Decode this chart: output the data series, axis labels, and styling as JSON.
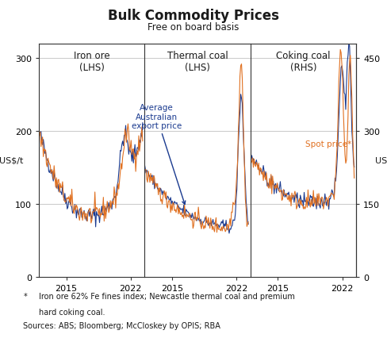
{
  "title": "Bulk Commodity Prices",
  "subtitle": "Free on board basis",
  "ylabel_left": "US$/t",
  "ylabel_right": "US$/t",
  "ylim_left": [
    0,
    320
  ],
  "ylim_right": [
    0,
    480
  ],
  "yticks_left": [
    0,
    100,
    200,
    300
  ],
  "yticks_right": [
    0,
    150,
    300,
    450
  ],
  "yticklabels_left": [
    "0",
    "100",
    "200",
    "300"
  ],
  "yticklabels_right": [
    "0",
    "150",
    "300",
    "450"
  ],
  "panel_labels": [
    "Iron ore\n(LHS)",
    "Thermal coal\n(LHS)",
    "Coking coal\n(RHS)"
  ],
  "xtick_values": [
    2015.0,
    2022.0
  ],
  "xtick_labels": [
    "2015",
    "2022"
  ],
  "xlim": [
    2012.0,
    2023.5
  ],
  "color_avg": "#1a3a8f",
  "color_spot": "#e07020",
  "annotation_text": "Average\nAustralian\nexport price",
  "annotation_text2": "Spot price*",
  "footnote_star": "*",
  "footnote1": "Iron ore 62% Fe fines index; Newcastle thermal coal and premium",
  "footnote2": "hard coking coal.",
  "sources": "Sources: ABS; Bloomberg; McCloskey by OPIS; RBA",
  "background_color": "#ffffff",
  "grid_color": "#c0c0c0",
  "border_color": "#333333",
  "text_color": "#1a1a1a"
}
